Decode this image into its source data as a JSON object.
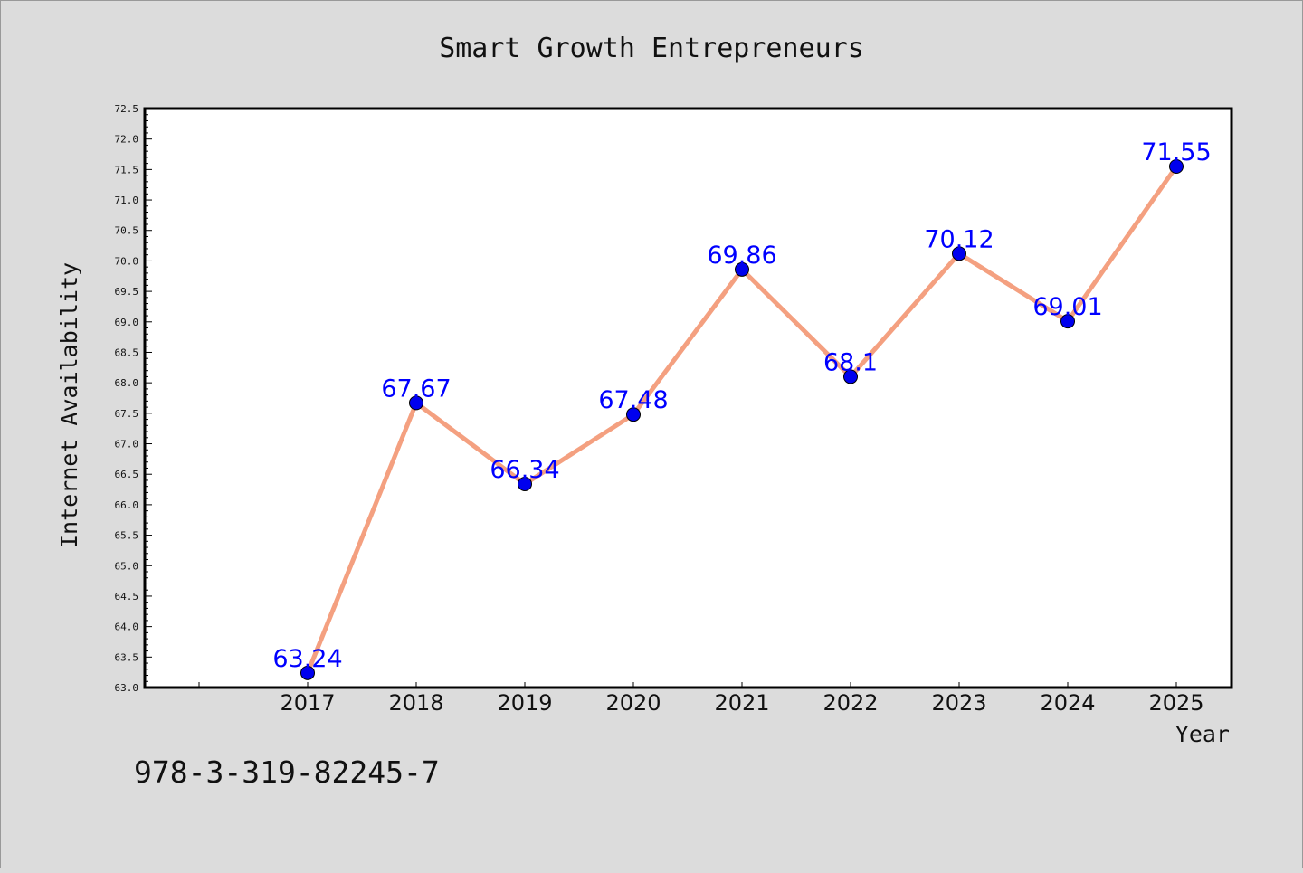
{
  "chart_data": {
    "type": "line",
    "title": "Smart Growth Entrepreneurs",
    "xlabel": "Year",
    "ylabel": "Internet Availability",
    "categories": [
      "2017",
      "2018",
      "2019",
      "2020",
      "2021",
      "2022",
      "2023",
      "2024",
      "2025"
    ],
    "series": [
      {
        "values": [
          63.24,
          67.67,
          66.34,
          67.48,
          69.86,
          68.1,
          70.12,
          69.01,
          71.55
        ],
        "labels": [
          "63.24",
          "67.67",
          "66.34",
          "67.48",
          "69.86",
          "68.1",
          "70.12",
          "69.01",
          "71.55"
        ]
      }
    ],
    "ylim": [
      63.0,
      72.5
    ],
    "yticks": [
      "63.0",
      "63.5",
      "64.0",
      "64.5",
      "65.0",
      "65.5",
      "66.0",
      "66.5",
      "67.0",
      "67.5",
      "68.0",
      "68.5",
      "69.0",
      "69.5",
      "70.0",
      "70.5",
      "71.0",
      "71.5",
      "72.0",
      "72.5"
    ],
    "grid": false,
    "legend": "none",
    "colors": {
      "background": "#dcdcdc",
      "plot_background": "#ffffff",
      "line": "#f4a080",
      "marker": "#0000ee",
      "label": "#0000ff"
    }
  },
  "footer_text": "978-3-319-82245-7"
}
